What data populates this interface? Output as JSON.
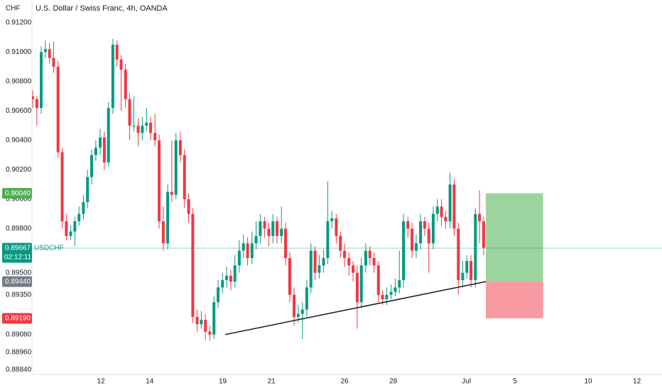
{
  "chart_data": {
    "type": "candlestick",
    "title": "U.S. Dollar / Swiss Franc, 4h, OANDA",
    "currency": "CHF",
    "symbol": "USDCHF",
    "countdown": "02:12:11",
    "up_color": "#089981",
    "down_color": "#f23645",
    "grid": false,
    "ylim": [
      0.88761,
      0.91354
    ],
    "xlim": [
      -2.83,
      23.03
    ],
    "yticks": [
      {
        "value": 0.912,
        "label": "0.91200"
      },
      {
        "value": 0.91,
        "label": "0.91000"
      },
      {
        "value": 0.908,
        "label": "0.90800"
      },
      {
        "value": 0.906,
        "label": "0.90600"
      },
      {
        "value": 0.904,
        "label": "0.90400"
      },
      {
        "value": 0.902,
        "label": "0.90200"
      },
      {
        "value": 0.9,
        "label": "0.90000"
      },
      {
        "value": 0.898,
        "label": "0.89800"
      },
      {
        "value": 0.895,
        "label": "0.89500"
      },
      {
        "value": 0.8935,
        "label": "0.89350"
      },
      {
        "value": 0.8908,
        "label": "0.89080"
      },
      {
        "value": 0.8896,
        "label": "0.88960"
      },
      {
        "value": 0.8884,
        "label": "0.88840"
      }
    ],
    "xticks": [
      {
        "value": 0,
        "label": "12"
      },
      {
        "value": 2,
        "label": "14"
      },
      {
        "value": 5,
        "label": "19"
      },
      {
        "value": 7,
        "label": "21"
      },
      {
        "value": 10,
        "label": "26"
      },
      {
        "value": 12,
        "label": "28"
      },
      {
        "value": 15,
        "label": "Jul"
      },
      {
        "value": 17,
        "label": "5"
      },
      {
        "value": 20,
        "label": "10"
      },
      {
        "value": 22,
        "label": "12"
      }
    ],
    "x": [
      -2.8,
      -2.63,
      -2.45,
      -2.28,
      -2.11,
      -1.94,
      -1.76,
      -1.59,
      -1.42,
      -1.24,
      -1.07,
      -0.9,
      -0.72,
      -0.55,
      -0.38,
      -0.21,
      -0.03,
      0.14,
      0.31,
      0.49,
      0.66,
      0.83,
      1.01,
      1.18,
      1.35,
      1.53,
      1.7,
      1.87,
      2.04,
      2.22,
      2.39,
      2.56,
      2.74,
      2.91,
      3.08,
      3.26,
      3.43,
      3.6,
      3.77,
      3.95,
      4.12,
      4.29,
      4.47,
      4.64,
      4.81,
      4.99,
      5.16,
      5.33,
      5.5,
      5.68,
      5.85,
      6.02,
      6.2,
      6.37,
      6.54,
      6.72,
      6.89,
      7.06,
      7.23,
      7.41,
      7.58,
      7.75,
      7.93,
      8.1,
      8.27,
      8.45,
      8.62,
      8.79,
      8.96,
      9.14,
      9.31,
      9.48,
      9.66,
      9.83,
      10.0,
      10.18,
      10.35,
      10.52,
      10.69,
      10.87,
      11.04,
      11.21,
      11.39,
      11.56,
      11.73,
      11.91,
      12.08,
      12.25,
      12.42,
      12.6,
      12.77,
      12.94,
      13.12,
      13.29,
      13.46,
      13.64,
      13.81,
      13.98,
      14.15,
      14.33,
      14.5,
      14.67,
      14.85,
      15.02,
      15.19,
      15.37,
      15.54,
      15.71
    ],
    "open": [
      0.907,
      0.9068,
      0.9062,
      0.91,
      0.9102,
      0.9096,
      0.909,
      0.9032,
      0.8985,
      0.8975,
      0.8978,
      0.8985,
      0.899,
      0.8998,
      0.9015,
      0.903,
      0.9035,
      0.9042,
      0.9025,
      0.9062,
      0.9105,
      0.9095,
      0.9088,
      0.9068,
      0.905,
      0.905,
      0.9045,
      0.905,
      0.9052,
      0.9045,
      0.904,
      0.8985,
      0.897,
      0.9005,
      0.9003,
      0.904,
      0.903,
      0.9,
      0.899,
      0.892,
      0.8915,
      0.8918,
      0.891,
      0.8908,
      0.893,
      0.894,
      0.8945,
      0.8948,
      0.8944,
      0.8955,
      0.8965,
      0.897,
      0.896,
      0.897,
      0.8975,
      0.8985,
      0.898,
      0.8975,
      0.8985,
      0.8975,
      0.898,
      0.896,
      0.8935,
      0.892,
      0.8922,
      0.8925,
      0.894,
      0.8965,
      0.895,
      0.8955,
      0.896,
      0.8985,
      0.8987,
      0.8975,
      0.8965,
      0.896,
      0.8955,
      0.895,
      0.893,
      0.8955,
      0.8965,
      0.896,
      0.8955,
      0.8935,
      0.8932,
      0.8935,
      0.8937,
      0.894,
      0.8945,
      0.8985,
      0.898,
      0.8965,
      0.897,
      0.8985,
      0.898,
      0.897,
      0.899,
      0.8995,
      0.8988,
      0.8985,
      0.901,
      0.898,
      0.8945,
      0.895,
      0.8958,
      0.8945,
      0.899,
      0.8985
    ],
    "high": [
      0.9074,
      0.907,
      0.9104,
      0.9108,
      0.9106,
      0.9107,
      0.9094,
      0.9035,
      0.899,
      0.8982,
      0.8988,
      0.8995,
      0.9003,
      0.902,
      0.9034,
      0.904,
      0.9048,
      0.9046,
      0.9066,
      0.9109,
      0.9108,
      0.9098,
      0.9092,
      0.9072,
      0.907,
      0.9055,
      0.9056,
      0.9062,
      0.9056,
      0.9058,
      0.9044,
      0.8995,
      0.901,
      0.904,
      0.9045,
      0.9046,
      0.9034,
      0.9004,
      0.8994,
      0.8925,
      0.8924,
      0.8922,
      0.8914,
      0.8934,
      0.8945,
      0.895,
      0.8954,
      0.8952,
      0.8962,
      0.8972,
      0.8976,
      0.8974,
      0.8978,
      0.8985,
      0.899,
      0.8988,
      0.8984,
      0.899,
      0.8988,
      0.8995,
      0.8984,
      0.8964,
      0.894,
      0.8928,
      0.893,
      0.8945,
      0.897,
      0.8968,
      0.8962,
      0.8966,
      0.9012,
      0.8992,
      0.899,
      0.8978,
      0.897,
      0.8964,
      0.8958,
      0.8955,
      0.896,
      0.897,
      0.8968,
      0.8964,
      0.8958,
      0.8938,
      0.894,
      0.8942,
      0.8946,
      0.8965,
      0.899,
      0.8988,
      0.8984,
      0.8976,
      0.899,
      0.8988,
      0.8984,
      0.8995,
      0.9,
      0.9,
      0.8992,
      0.9018,
      0.9014,
      0.8984,
      0.8958,
      0.8962,
      0.8962,
      0.8994,
      0.9006,
      0.8988
    ],
    "low": [
      0.9062,
      0.905,
      0.9058,
      0.9096,
      0.9092,
      0.9086,
      0.9028,
      0.898,
      0.8972,
      0.8972,
      0.8968,
      0.8982,
      0.8986,
      0.8994,
      0.901,
      0.9026,
      0.903,
      0.902,
      0.9022,
      0.9058,
      0.909,
      0.906,
      0.9062,
      0.904,
      0.9046,
      0.9036,
      0.904,
      0.9046,
      0.904,
      0.9036,
      0.898,
      0.8965,
      0.8966,
      0.8998,
      0.9,
      0.9025,
      0.8994,
      0.8984,
      0.8916,
      0.891,
      0.8912,
      0.8904,
      0.8904,
      0.8905,
      0.8926,
      0.8936,
      0.894,
      0.8938,
      0.894,
      0.895,
      0.896,
      0.8955,
      0.8956,
      0.8966,
      0.897,
      0.8974,
      0.8968,
      0.897,
      0.897,
      0.897,
      0.8955,
      0.893,
      0.8914,
      0.8916,
      0.8905,
      0.892,
      0.8936,
      0.8945,
      0.8946,
      0.895,
      0.8956,
      0.898,
      0.897,
      0.896,
      0.8954,
      0.8948,
      0.8944,
      0.8912,
      0.8926,
      0.895,
      0.8955,
      0.895,
      0.893,
      0.8928,
      0.8928,
      0.8932,
      0.8934,
      0.8936,
      0.894,
      0.8974,
      0.896,
      0.896,
      0.8966,
      0.8975,
      0.895,
      0.8966,
      0.8985,
      0.8982,
      0.898,
      0.898,
      0.8975,
      0.8935,
      0.894,
      0.8946,
      0.894,
      0.894,
      0.897,
      0.8962
    ],
    "close": [
      0.9068,
      0.9062,
      0.91,
      0.9102,
      0.9096,
      0.909,
      0.9032,
      0.8985,
      0.8975,
      0.8978,
      0.8985,
      0.899,
      0.8998,
      0.9015,
      0.903,
      0.9035,
      0.9042,
      0.9025,
      0.9062,
      0.9105,
      0.9095,
      0.9088,
      0.9068,
      0.905,
      0.905,
      0.9045,
      0.905,
      0.9052,
      0.9045,
      0.904,
      0.8985,
      0.897,
      0.9005,
      0.9003,
      0.904,
      0.903,
      0.9,
      0.899,
      0.892,
      0.8915,
      0.8918,
      0.891,
      0.8908,
      0.893,
      0.894,
      0.8945,
      0.8948,
      0.8944,
      0.8955,
      0.8965,
      0.897,
      0.896,
      0.897,
      0.8975,
      0.8985,
      0.898,
      0.8975,
      0.8985,
      0.8975,
      0.898,
      0.896,
      0.8935,
      0.892,
      0.8922,
      0.8925,
      0.894,
      0.8965,
      0.895,
      0.8955,
      0.896,
      0.8985,
      0.8987,
      0.8975,
      0.8965,
      0.896,
      0.8955,
      0.895,
      0.893,
      0.8955,
      0.8965,
      0.896,
      0.8955,
      0.8935,
      0.8932,
      0.8935,
      0.8937,
      0.894,
      0.8945,
      0.8985,
      0.898,
      0.8965,
      0.897,
      0.8985,
      0.898,
      0.897,
      0.899,
      0.8995,
      0.8988,
      0.8985,
      0.901,
      0.898,
      0.8945,
      0.895,
      0.8958,
      0.8945,
      0.899,
      0.8985,
      0.8967
    ],
    "last_price": {
      "value": 0.89667,
      "label": "0.89667",
      "color": "#089981"
    },
    "trendline": {
      "x": [
        5.1,
        15.8
      ],
      "y": [
        0.8908,
        0.8944
      ],
      "color": "#131722"
    },
    "position": {
      "x": [
        15.8,
        18.15
      ],
      "target": {
        "value": 0.9004,
        "label": "0.90040",
        "color": "#4caf50"
      },
      "entry": {
        "value": 0.8944,
        "label": "0.89440",
        "color": "#787b86"
      },
      "stop": {
        "value": 0.8919,
        "label": "0.89190",
        "color": "#f23645"
      }
    }
  }
}
